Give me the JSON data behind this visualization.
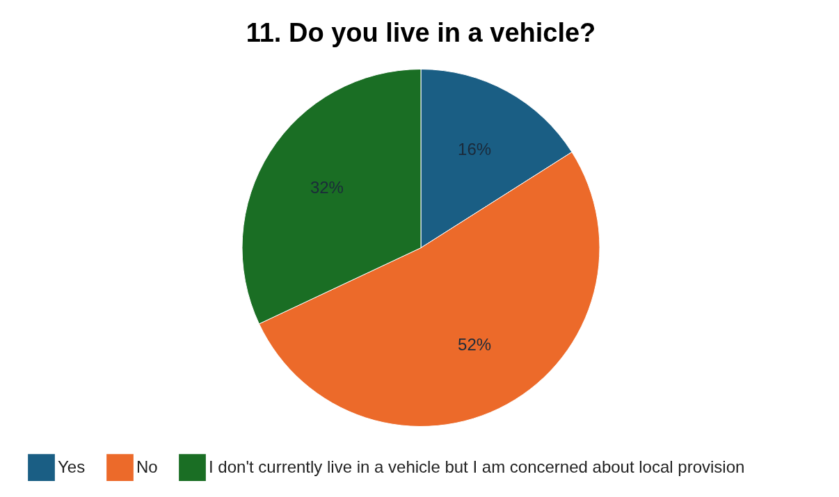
{
  "chart_data": {
    "type": "pie",
    "title": "11. Do you live in a vehicle?",
    "categories": [
      "Yes",
      "No",
      "I don't currently live in a vehicle but I am concerned about local provision"
    ],
    "values": [
      16,
      52,
      32
    ],
    "colors": [
      "#1a5e84",
      "#ec6a2a",
      "#1a6e24"
    ],
    "value_labels": [
      "16%",
      "52%",
      "32%"
    ],
    "legend": "bottom"
  }
}
